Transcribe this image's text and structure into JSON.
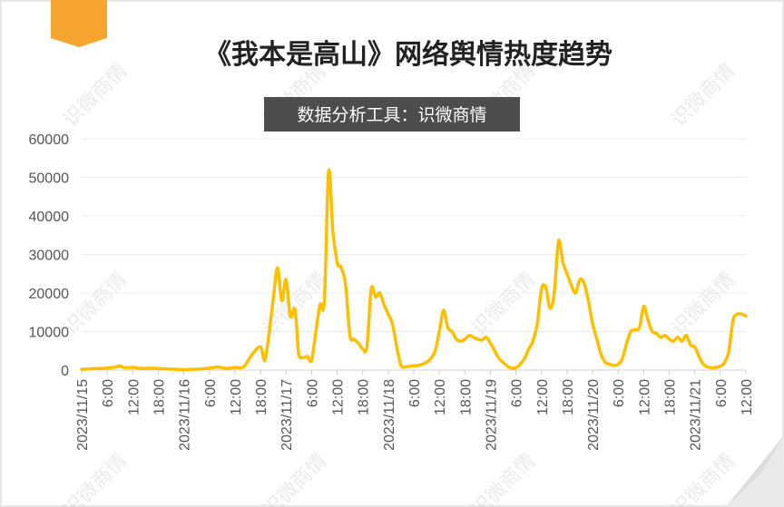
{
  "chart_data": {
    "type": "line",
    "title": "《我本是高山》网络舆情热度趋势",
    "subtitle": "数据分析工具：识微商情",
    "watermark": "识微商情",
    "color": "#FFBF00",
    "accent_color": "#F5A623",
    "xlabel": "",
    "ylabel": "",
    "ylim": [
      0,
      60000
    ],
    "yticks": [
      0,
      10000,
      20000,
      30000,
      40000,
      50000,
      60000
    ],
    "grid": true,
    "legend": "none",
    "xtick_labels": [
      "2023/11/15",
      "6:00",
      "12:00",
      "18:00",
      "2023/11/16",
      "6:00",
      "12:00",
      "18:00",
      "2023/11/17",
      "6:00",
      "12:00",
      "18:00",
      "2023/11/18",
      "6:00",
      "12:00",
      "18:00",
      "2023/11/19",
      "6:00",
      "12:00",
      "18:00",
      "2023/11/20",
      "6:00",
      "12:00",
      "18:00",
      "2023/11/21",
      "6:00",
      "12:00"
    ],
    "x_hours": [
      0,
      2,
      4,
      6,
      8,
      9,
      10,
      12,
      14,
      16,
      18,
      20,
      22,
      24,
      26,
      28,
      30,
      32,
      34,
      36,
      38,
      40,
      42,
      43,
      44,
      45,
      46,
      47,
      48,
      49,
      50,
      50.5,
      51,
      52,
      53,
      54,
      55,
      56,
      57,
      58,
      59,
      60,
      60.5,
      61,
      62,
      63,
      64,
      65,
      66,
      67,
      68,
      69,
      70,
      71,
      72,
      73,
      74,
      75,
      76,
      77,
      78,
      79,
      80,
      81,
      82,
      83,
      84,
      85,
      86,
      87,
      88,
      89,
      90,
      91,
      92,
      93,
      94,
      95,
      96,
      97,
      98,
      99,
      100,
      101,
      102,
      103,
      104,
      105,
      106,
      107,
      108,
      109,
      110,
      111,
      112,
      113,
      114,
      115,
      116,
      117,
      118,
      119,
      120,
      121,
      122,
      123,
      124,
      125,
      126,
      127,
      128,
      129,
      130,
      131,
      132,
      133,
      134,
      135,
      136,
      137,
      138,
      139,
      140,
      141,
      142,
      143,
      144,
      145,
      146,
      147,
      148,
      149,
      150,
      151,
      152,
      153,
      154,
      155,
      156
    ],
    "values": [
      200,
      300,
      400,
      500,
      800,
      1100,
      600,
      700,
      400,
      500,
      400,
      300,
      200,
      100,
      200,
      300,
      500,
      800,
      400,
      700,
      800,
      4000,
      6000,
      2500,
      9500,
      18500,
      26500,
      18000,
      23500,
      14000,
      16000,
      11000,
      4000,
      3200,
      3500,
      2500,
      10000,
      17000,
      18000,
      51500,
      36000,
      28000,
      27000,
      26500,
      22000,
      9000,
      8000,
      7000,
      5500,
      6000,
      21000,
      19000,
      20000,
      17000,
      14500,
      12000,
      6000,
      1200,
      800,
      1000,
      1100,
      1200,
      1500,
      2000,
      3000,
      5000,
      10000,
      15500,
      11000,
      10000,
      8000,
      7500,
      8000,
      9000,
      8500,
      8000,
      7800,
      8500,
      7000,
      5000,
      3000,
      2000,
      1000,
      500,
      600,
      1500,
      3000,
      5500,
      7500,
      12000,
      21000,
      21500,
      16000,
      20000,
      33500,
      28000,
      25000,
      22000,
      20000,
      23500,
      22500,
      18000,
      12000,
      8000,
      4000,
      2000,
      1500,
      1200,
      1500,
      3000,
      7000,
      10000,
      10500,
      11000,
      16500,
      13000,
      10000,
      9500,
      8500,
      9000,
      8000,
      7500,
      8500,
      7500,
      9000,
      6500,
      6000,
      3500,
      1500,
      800,
      600,
      700,
      1000,
      2000,
      5000,
      13000,
      14500,
      14500,
      14000
    ]
  }
}
